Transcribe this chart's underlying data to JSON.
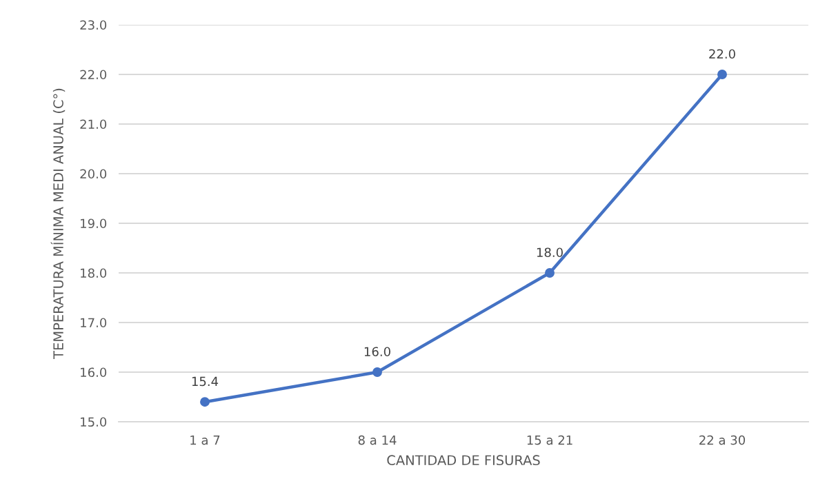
{
  "chart_data": {
    "type": "line",
    "xlabel": "CANTIDAD DE FISURAS",
    "ylabel": "TEMPERATURA MÍNIMA MEDI ANUAL (C°)",
    "categories": [
      "1 a 7",
      "8 a 14",
      "15 a 21",
      "22 a 30"
    ],
    "series": [
      {
        "color": "#4472c4",
        "values": [
          15.4,
          16.0,
          18.0,
          22.0
        ],
        "value_labels": [
          "15.4",
          "16.0",
          "18.0",
          "22.0"
        ]
      }
    ],
    "ylim": [
      15,
      23
    ],
    "yticks": [
      {
        "value": 15,
        "label": "15.0"
      },
      {
        "value": 16,
        "label": "16.0"
      },
      {
        "value": 17,
        "label": "17.0"
      },
      {
        "value": 18,
        "label": "18.0"
      },
      {
        "value": 19,
        "label": "19.0"
      },
      {
        "value": 20,
        "label": "20.0"
      },
      {
        "value": 21,
        "label": "21.0"
      },
      {
        "value": 22,
        "label": "22.0"
      },
      {
        "value": 23,
        "label": "23.0"
      }
    ],
    "grid": "y",
    "marker": "circle",
    "line_style": "solid"
  }
}
